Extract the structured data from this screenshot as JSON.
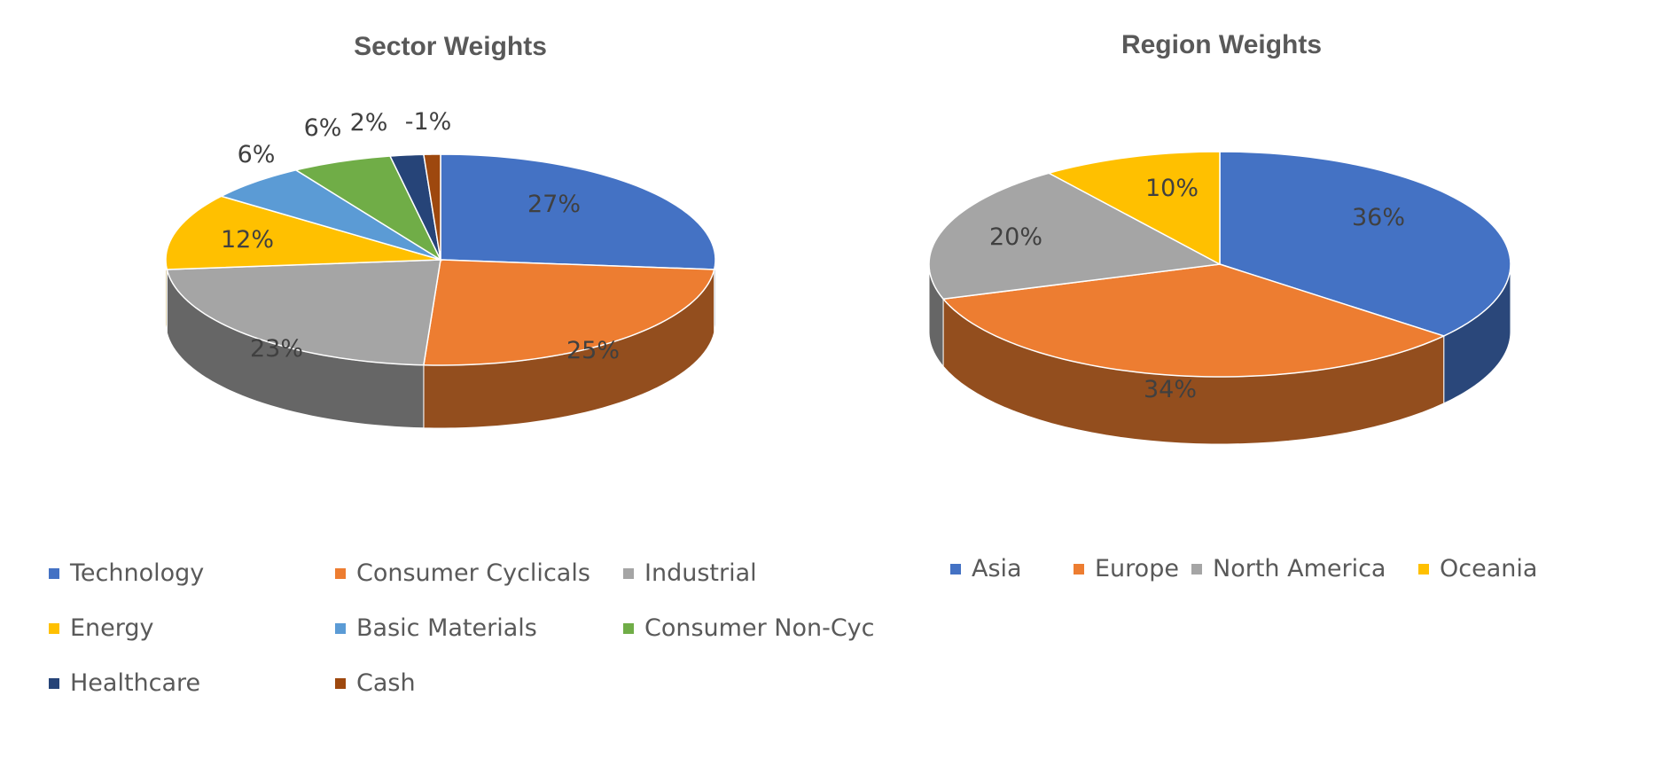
{
  "chart_data": [
    {
      "type": "pie",
      "title": "Sector Weights",
      "categories": [
        "Technology",
        "Consumer Cyclicals",
        "Industrial",
        "Energy",
        "Basic Materials",
        "Consumer Non-Cyc",
        "Healthcare",
        "Cash"
      ],
      "values": [
        27,
        25,
        23,
        12,
        6,
        6,
        2,
        -1
      ],
      "data_labels": [
        "27%",
        "25%",
        "23%",
        "12%",
        "6%",
        "6%",
        "2%",
        "-1%"
      ],
      "colors": [
        "#4472C4",
        "#ED7D31",
        "#A5A5A5",
        "#FFC000",
        "#5B9BD5",
        "#70AD47",
        "#264478",
        "#9E480E"
      ],
      "legend_position": "bottom",
      "style": "3d"
    },
    {
      "type": "pie",
      "title": "Region Weights",
      "categories": [
        "Asia",
        "Europe",
        "North America",
        "Oceania"
      ],
      "values": [
        36,
        34,
        20,
        10
      ],
      "data_labels": [
        "36%",
        "34%",
        "20%",
        "10%"
      ],
      "colors": [
        "#4472C4",
        "#ED7D31",
        "#A5A5A5",
        "#FFC000"
      ],
      "legend_position": "bottom",
      "style": "3d"
    }
  ]
}
